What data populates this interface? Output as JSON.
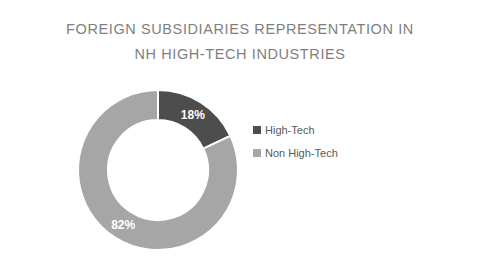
{
  "chart_data": {
    "type": "donut",
    "title": "FOREIGN SUBSIDIARIES REPRESENTATION IN\nNH HIGH-TECH INDUSTRIES",
    "categories": [
      "High-Tech",
      "Non High-Tech"
    ],
    "values": [
      18,
      82
    ],
    "value_labels": [
      "18%",
      "82%"
    ],
    "colors": [
      "#4d4d4d",
      "#a6a6a6"
    ],
    "data_labels": true,
    "legend": "right"
  }
}
